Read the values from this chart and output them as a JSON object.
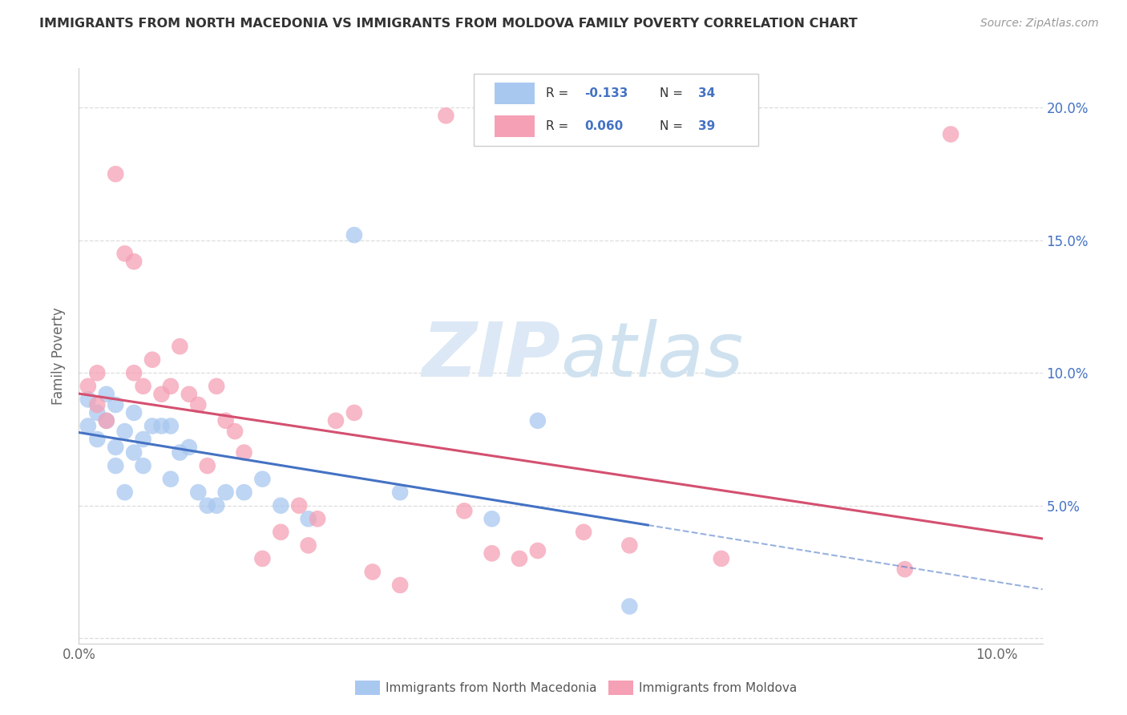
{
  "title": "IMMIGRANTS FROM NORTH MACEDONIA VS IMMIGRANTS FROM MOLDOVA FAMILY POVERTY CORRELATION CHART",
  "source": "Source: ZipAtlas.com",
  "ylabel": "Family Poverty",
  "xlim": [
    0.0,
    0.105
  ],
  "ylim": [
    -0.002,
    0.215
  ],
  "xticks": [
    0.0,
    0.02,
    0.04,
    0.06,
    0.08,
    0.1
  ],
  "yticks": [
    0.0,
    0.05,
    0.1,
    0.15,
    0.2
  ],
  "legend_R1": "-0.133",
  "legend_N1": "34",
  "legend_R2": "0.060",
  "legend_N2": "39",
  "color_blue": "#A8C8F0",
  "color_pink": "#F5A0B5",
  "color_line_blue": "#4472C4",
  "color_line_pink": "#D45070",
  "north_macedonia_x": [
    0.001,
    0.001,
    0.002,
    0.002,
    0.003,
    0.003,
    0.004,
    0.004,
    0.004,
    0.005,
    0.005,
    0.006,
    0.006,
    0.007,
    0.007,
    0.008,
    0.009,
    0.01,
    0.01,
    0.011,
    0.012,
    0.013,
    0.014,
    0.015,
    0.016,
    0.018,
    0.02,
    0.022,
    0.025,
    0.03,
    0.035,
    0.045,
    0.05,
    0.06
  ],
  "north_macedonia_y": [
    0.09,
    0.08,
    0.085,
    0.075,
    0.092,
    0.082,
    0.088,
    0.072,
    0.065,
    0.078,
    0.055,
    0.085,
    0.07,
    0.065,
    0.075,
    0.08,
    0.08,
    0.08,
    0.06,
    0.07,
    0.072,
    0.055,
    0.05,
    0.05,
    0.055,
    0.055,
    0.06,
    0.05,
    0.045,
    0.152,
    0.055,
    0.045,
    0.082,
    0.012
  ],
  "moldova_x": [
    0.001,
    0.002,
    0.002,
    0.003,
    0.004,
    0.005,
    0.006,
    0.006,
    0.007,
    0.008,
    0.009,
    0.01,
    0.011,
    0.012,
    0.013,
    0.014,
    0.015,
    0.016,
    0.017,
    0.018,
    0.02,
    0.022,
    0.024,
    0.025,
    0.026,
    0.028,
    0.03,
    0.032,
    0.035,
    0.04,
    0.042,
    0.045,
    0.048,
    0.05,
    0.055,
    0.06,
    0.07,
    0.09,
    0.095
  ],
  "moldova_y": [
    0.095,
    0.088,
    0.1,
    0.082,
    0.175,
    0.145,
    0.142,
    0.1,
    0.095,
    0.105,
    0.092,
    0.095,
    0.11,
    0.092,
    0.088,
    0.065,
    0.095,
    0.082,
    0.078,
    0.07,
    0.03,
    0.04,
    0.05,
    0.035,
    0.045,
    0.082,
    0.085,
    0.025,
    0.02,
    0.197,
    0.048,
    0.032,
    0.03,
    0.033,
    0.04,
    0.035,
    0.03,
    0.026,
    0.19
  ]
}
